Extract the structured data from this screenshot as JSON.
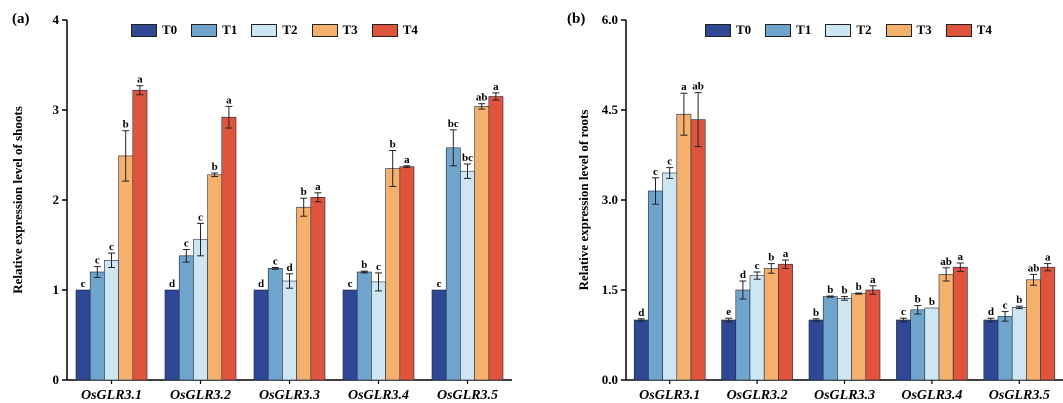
{
  "colors": {
    "T0": "#2e4895",
    "T1": "#6fa4cd",
    "T2": "#cde6f1",
    "T3": "#f5b06c",
    "T4": "#e0533c",
    "axis": "#000000",
    "errbar": "#222222"
  },
  "chart_data": [
    {
      "type": "bar",
      "panel_label": "(a)",
      "ylabel": "Relative expression level of shoots",
      "ylim": [
        0,
        4
      ],
      "yticks": [
        "0",
        "1",
        "2",
        "3",
        "4"
      ],
      "ytick_values": [
        0,
        1,
        2,
        3,
        4
      ],
      "categories": [
        "OsGLR3.1",
        "OsGLR3.2",
        "OsGLR3.3",
        "OsGLR3.4",
        "OsGLR3.5"
      ],
      "legend": [
        "T0",
        "T1",
        "T2",
        "T3",
        "T4"
      ],
      "series": [
        {
          "name": "T0",
          "values": [
            1.0,
            1.0,
            1.0,
            1.0,
            1.0
          ],
          "errors": [
            0.0,
            0.0,
            0.0,
            0.0,
            0.0
          ],
          "letters": [
            "c",
            "d",
            "d",
            "c",
            "c"
          ]
        },
        {
          "name": "T1",
          "values": [
            1.2,
            1.38,
            1.24,
            1.2,
            2.58
          ],
          "errors": [
            0.06,
            0.07,
            0.01,
            0.01,
            0.2
          ],
          "letters": [
            "c",
            "c",
            "c",
            "b",
            "bc"
          ]
        },
        {
          "name": "T2",
          "values": [
            1.33,
            1.56,
            1.1,
            1.09,
            2.32
          ],
          "errors": [
            0.08,
            0.18,
            0.08,
            0.1,
            0.08
          ],
          "letters": [
            "c",
            "c",
            "d",
            "c",
            "bc"
          ]
        },
        {
          "name": "T3",
          "values": [
            2.49,
            2.28,
            1.92,
            2.35,
            3.04
          ],
          "errors": [
            0.28,
            0.02,
            0.1,
            0.2,
            0.03
          ],
          "letters": [
            "b",
            "b",
            "b",
            "b",
            "ab"
          ]
        },
        {
          "name": "T4",
          "values": [
            3.22,
            2.92,
            2.03,
            2.37,
            3.15
          ],
          "errors": [
            0.05,
            0.12,
            0.05,
            0.01,
            0.04
          ],
          "letters": [
            "a",
            "a",
            "a",
            "a",
            "a"
          ]
        }
      ]
    },
    {
      "type": "bar",
      "panel_label": "(b)",
      "ylabel": "Relative expression level of roots",
      "ylim": [
        0,
        6
      ],
      "yticks": [
        "0.0",
        "1.5",
        "3.0",
        "4.5",
        "6.0"
      ],
      "ytick_values": [
        0,
        1.5,
        3.0,
        4.5,
        6.0
      ],
      "categories": [
        "OsGLR3.1",
        "OsGLR3.2",
        "OsGLR3.3",
        "OsGLR3.4",
        "OsGLR3.5"
      ],
      "legend": [
        "T0",
        "T1",
        "T2",
        "T3",
        "T4"
      ],
      "series": [
        {
          "name": "T0",
          "values": [
            1.0,
            1.0,
            1.0,
            1.0,
            1.0
          ],
          "errors": [
            0.02,
            0.03,
            0.02,
            0.03,
            0.03
          ],
          "letters": [
            "d",
            "e",
            "b",
            "c",
            "d"
          ]
        },
        {
          "name": "T1",
          "values": [
            3.15,
            1.5,
            1.39,
            1.17,
            1.06
          ],
          "errors": [
            0.22,
            0.15,
            0.01,
            0.07,
            0.08
          ],
          "letters": [
            "c",
            "d",
            "b",
            "b",
            "c"
          ]
        },
        {
          "name": "T2",
          "values": [
            3.45,
            1.74,
            1.36,
            1.2,
            1.21
          ],
          "errors": [
            0.09,
            0.06,
            0.03,
            0.0,
            0.02
          ],
          "letters": [
            "c",
            "c",
            "b",
            "b",
            "b"
          ]
        },
        {
          "name": "T3",
          "values": [
            4.43,
            1.86,
            1.44,
            1.76,
            1.67
          ],
          "errors": [
            0.35,
            0.08,
            0.01,
            0.11,
            0.09
          ],
          "letters": [
            "a",
            "b",
            "b",
            "ab",
            "ab"
          ]
        },
        {
          "name": "T4",
          "values": [
            4.34,
            1.93,
            1.5,
            1.88,
            1.88
          ],
          "errors": [
            0.45,
            0.07,
            0.07,
            0.07,
            0.06
          ],
          "letters": [
            "ab",
            "a",
            "a",
            "a",
            "a"
          ]
        }
      ]
    }
  ]
}
